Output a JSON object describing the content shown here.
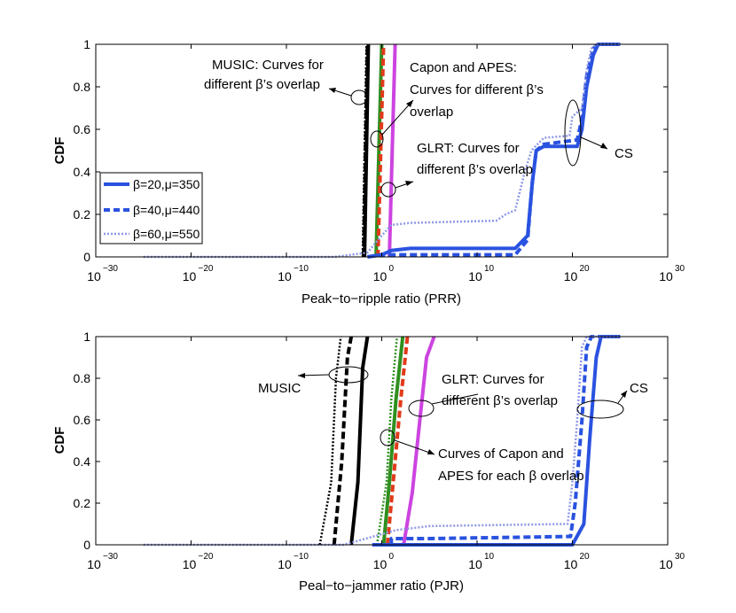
{
  "chart_data": [
    {
      "type": "line",
      "id": "top",
      "xscale": "log",
      "xlim_exp": [
        -30,
        30
      ],
      "x_tick_exponents": [
        -30,
        -20,
        -10,
        0,
        10,
        20,
        30
      ],
      "x_tick_labels": [
        "10",
        "10",
        "10",
        "10",
        "10",
        "10",
        "10"
      ],
      "x_tick_superscripts": [
        "−30",
        "−20",
        "−10",
        "0",
        "10",
        "20",
        "30"
      ],
      "ylim": [
        0,
        1
      ],
      "y_ticks": [
        0,
        0.2,
        0.4,
        0.6,
        0.8,
        1
      ],
      "y_tick_labels": [
        "0",
        "0.2",
        "0.4",
        "0.6",
        "0.8",
        "1"
      ],
      "xlabel": "Peak−to−ripple ratio (PRR)",
      "ylabel": "CDF",
      "legend": {
        "placement": "left",
        "entries": [
          {
            "label": "β=20,μ=350",
            "style": "solid"
          },
          {
            "label": "β=40,μ=440",
            "style": "dashed"
          },
          {
            "label": "β=60,μ=550",
            "style": "dotted"
          }
        ]
      },
      "series": [
        {
          "name": "MUSIC β=20",
          "color": "#000000",
          "style": "solid",
          "points": [
            [
              -1.8,
              0
            ],
            [
              -1.6,
              0.5
            ],
            [
              -1.4,
              1
            ]
          ]
        },
        {
          "name": "MUSIC β=40",
          "color": "#000000",
          "style": "dashed",
          "points": [
            [
              -1.9,
              0
            ],
            [
              -1.7,
              0.5
            ],
            [
              -1.5,
              1
            ]
          ]
        },
        {
          "name": "MUSIC β=60",
          "color": "#000000",
          "style": "dotted",
          "points": [
            [
              -2.0,
              0
            ],
            [
              -1.8,
              0.5
            ],
            [
              -1.6,
              1
            ]
          ]
        },
        {
          "name": "Capon",
          "color": "#2f8f1f",
          "style": "solid",
          "points": [
            [
              -0.6,
              0
            ],
            [
              -0.3,
              0.5
            ],
            [
              0,
              1
            ]
          ]
        },
        {
          "name": "APES",
          "color": "#e03a1a",
          "style": "dashed",
          "points": [
            [
              -0.4,
              0
            ],
            [
              -0.1,
              0.5
            ],
            [
              0.2,
              1
            ]
          ]
        },
        {
          "name": "GLRT",
          "color": "#cc44e0",
          "style": "solid",
          "points": [
            [
              0.8,
              0
            ],
            [
              1.1,
              0.5
            ],
            [
              1.4,
              1
            ]
          ]
        },
        {
          "name": "CS β=20,μ=350",
          "color": "#2a52e0",
          "style": "solid",
          "points": [
            [
              -1.5,
              0
            ],
            [
              0,
              0.01
            ],
            [
              1,
              0.03
            ],
            [
              3,
              0.04
            ],
            [
              14,
              0.04
            ],
            [
              15.3,
              0.1
            ],
            [
              15.8,
              0.35
            ],
            [
              16.2,
              0.5
            ],
            [
              17,
              0.52
            ],
            [
              20.5,
              0.52
            ],
            [
              21,
              0.6
            ],
            [
              21.5,
              0.8
            ],
            [
              22.2,
              0.95
            ],
            [
              22.7,
              1
            ],
            [
              25,
              1
            ]
          ]
        },
        {
          "name": "CS β=40,μ=440",
          "color": "#2a52e0",
          "style": "dashed",
          "points": [
            [
              -1.5,
              0
            ],
            [
              0,
              0.01
            ],
            [
              3,
              0.01
            ],
            [
              14,
              0.01
            ],
            [
              15.3,
              0.08
            ],
            [
              15.8,
              0.35
            ],
            [
              16.2,
              0.5
            ],
            [
              17,
              0.53
            ],
            [
              20.5,
              0.55
            ],
            [
              21,
              0.65
            ],
            [
              21.5,
              0.85
            ],
            [
              22.2,
              0.98
            ],
            [
              22.7,
              1
            ],
            [
              25,
              1
            ]
          ]
        },
        {
          "name": "CS β=60,μ=550",
          "color": "#8e98e6",
          "style": "dotted",
          "points": [
            [
              -25,
              0
            ],
            [
              -5,
              0
            ],
            [
              -1.5,
              0.02
            ],
            [
              0,
              0.1
            ],
            [
              1,
              0.15
            ],
            [
              3,
              0.16
            ],
            [
              12,
              0.17
            ],
            [
              13,
              0.2
            ],
            [
              14,
              0.22
            ],
            [
              15,
              0.4
            ],
            [
              15.7,
              0.5
            ],
            [
              17,
              0.56
            ],
            [
              19.7,
              0.57
            ],
            [
              20,
              0.66
            ],
            [
              21,
              0.7
            ],
            [
              21.5,
              0.88
            ],
            [
              22,
              0.98
            ],
            [
              22.5,
              1
            ],
            [
              25,
              1
            ]
          ]
        }
      ],
      "annotations": [
        "MUSIC: Curves for",
        "different β’s overlap",
        "Capon and APES:",
        "Curves for different β’s",
        "overlap",
        "GLRT: Curves for",
        "different β’s overlap",
        "CS"
      ]
    },
    {
      "type": "line",
      "id": "bottom",
      "xscale": "log",
      "xlim_exp": [
        -30,
        30
      ],
      "x_tick_exponents": [
        -30,
        -20,
        -10,
        0,
        10,
        20,
        30
      ],
      "x_tick_labels": [
        "10",
        "10",
        "10",
        "10",
        "10",
        "10",
        "10"
      ],
      "x_tick_superscripts": [
        "−30",
        "−20",
        "−10",
        "0",
        "10",
        "20",
        "30"
      ],
      "ylim": [
        0,
        1
      ],
      "y_ticks": [
        0,
        0.2,
        0.4,
        0.6,
        0.8,
        1
      ],
      "y_tick_labels": [
        "0",
        "0.2",
        "0.4",
        "0.6",
        "0.8",
        "1"
      ],
      "xlabel": "Peal−to−jammer ratio (PJR)",
      "ylabel": "CDF",
      "series": [
        {
          "name": "MUSIC β=60",
          "color": "#000000",
          "style": "dotted",
          "points": [
            [
              -6.5,
              0
            ],
            [
              -5.3,
              0.3
            ],
            [
              -4.8,
              0.8
            ],
            [
              -4.3,
              1
            ]
          ]
        },
        {
          "name": "MUSIC β=40",
          "color": "#000000",
          "style": "dashed",
          "points": [
            [
              -5,
              0
            ],
            [
              -4.2,
              0.4
            ],
            [
              -3.6,
              0.9
            ],
            [
              -3.2,
              1
            ]
          ]
        },
        {
          "name": "MUSIC β=20",
          "color": "#000000",
          "style": "solid",
          "points": [
            [
              -3.2,
              0
            ],
            [
              -2.5,
              0.3
            ],
            [
              -2,
              0.85
            ],
            [
              -1.5,
              1
            ]
          ]
        },
        {
          "name": "Capon dotted",
          "color": "#2f8f1f",
          "style": "dotted",
          "points": [
            [
              -0.5,
              0
            ],
            [
              0.5,
              0.3
            ],
            [
              1,
              0.7
            ],
            [
              1.6,
              1
            ]
          ]
        },
        {
          "name": "Capon",
          "color": "#2f8f1f",
          "style": "solid",
          "points": [
            [
              0.2,
              0
            ],
            [
              0.8,
              0.3
            ],
            [
              1.5,
              0.7
            ],
            [
              2.2,
              1
            ]
          ]
        },
        {
          "name": "APES",
          "color": "#e03a1a",
          "style": "dashed",
          "points": [
            [
              0.6,
              0
            ],
            [
              1.2,
              0.3
            ],
            [
              2,
              0.7
            ],
            [
              2.7,
              1
            ]
          ]
        },
        {
          "name": "GLRT",
          "color": "#cc44e0",
          "style": "solid",
          "points": [
            [
              2.3,
              0
            ],
            [
              3.2,
              0.25
            ],
            [
              4,
              0.6
            ],
            [
              4.7,
              0.9
            ],
            [
              5.5,
              1
            ]
          ]
        },
        {
          "name": "CS β=20,μ=350",
          "color": "#2a52e0",
          "style": "solid",
          "points": [
            [
              -1,
              0
            ],
            [
              20,
              0
            ],
            [
              21.2,
              0.1
            ],
            [
              21.8,
              0.5
            ],
            [
              22.5,
              0.9
            ],
            [
              23,
              1
            ],
            [
              25,
              1
            ]
          ]
        },
        {
          "name": "CS β=40,μ=440",
          "color": "#2a52e0",
          "style": "dashed",
          "points": [
            [
              1,
              0
            ],
            [
              1,
              0.03
            ],
            [
              5,
              0.03
            ],
            [
              19.8,
              0.04
            ],
            [
              20.3,
              0.2
            ],
            [
              21,
              0.6
            ],
            [
              21.5,
              0.95
            ],
            [
              22,
              1
            ],
            [
              25,
              1
            ]
          ]
        },
        {
          "name": "CS β=60,μ=550",
          "color": "#8e98e6",
          "style": "dotted",
          "points": [
            [
              -25,
              0
            ],
            [
              -4,
              0
            ],
            [
              1.5,
              0.07
            ],
            [
              5,
              0.09
            ],
            [
              19.5,
              0.1
            ],
            [
              20,
              0.3
            ],
            [
              20.5,
              0.6
            ],
            [
              21,
              0.95
            ],
            [
              21.5,
              1
            ],
            [
              25,
              1
            ]
          ]
        }
      ],
      "annotations": [
        "MUSIC",
        "GLRT: Curves for",
        "different β’s overlap",
        "Curves of Capon and",
        "APES for each β overlap",
        "CS"
      ]
    }
  ]
}
